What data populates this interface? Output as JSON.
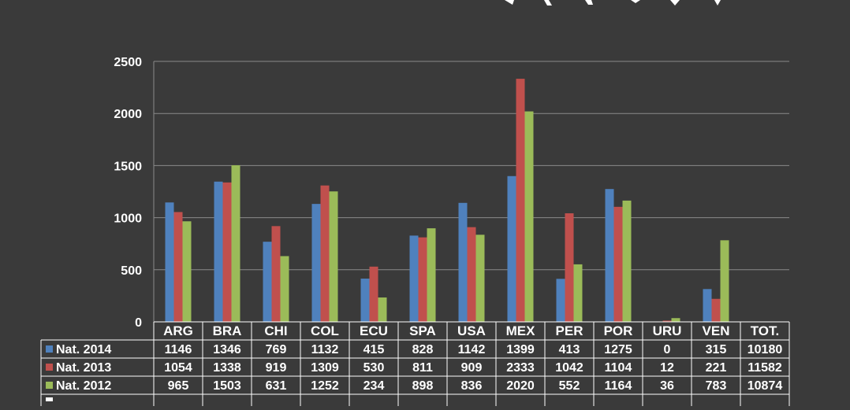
{
  "chart_data": {
    "type": "bar",
    "title": "",
    "categories": [
      "ARG",
      "BRA",
      "CHI",
      "COL",
      "ECU",
      "SPA",
      "USA",
      "MEX",
      "PER",
      "POR",
      "URU",
      "VEN"
    ],
    "total_label": "TOT.",
    "series": [
      {
        "name": "Nat. 2014",
        "color": "#4f81bd",
        "values": [
          1146,
          1346,
          769,
          1132,
          415,
          828,
          1142,
          1399,
          413,
          1275,
          0,
          315
        ],
        "total": 10180
      },
      {
        "name": "Nat. 2013",
        "color": "#c0504d",
        "values": [
          1054,
          1338,
          919,
          1309,
          530,
          811,
          909,
          2333,
          1042,
          1104,
          12,
          221
        ],
        "total": 11582
      },
      {
        "name": "Nat. 2012",
        "color": "#9bbb59",
        "values": [
          965,
          1503,
          631,
          1252,
          234,
          898,
          836,
          2020,
          552,
          1164,
          36,
          783
        ],
        "total": 10874
      }
    ],
    "y_ticks": [
      "0",
      "500",
      "1000",
      "1500",
      "2000",
      "2500"
    ],
    "ylim": [
      0,
      2500
    ],
    "grid": true,
    "legend": "table-below"
  },
  "colors": {
    "background": "#3a3a3a",
    "grid": "#8a8a8a",
    "text": "#ffffff"
  }
}
